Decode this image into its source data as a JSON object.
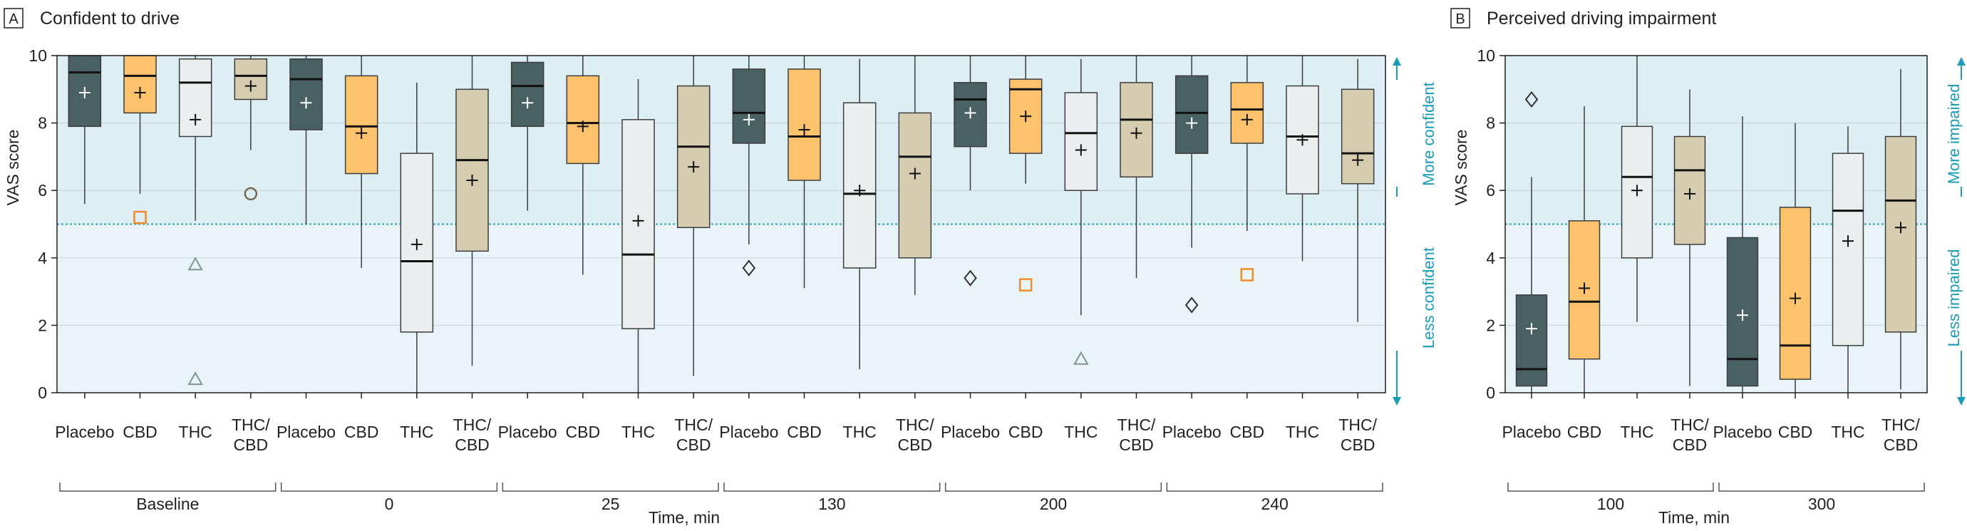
{
  "colors": {
    "placebo": "#4a6163",
    "cbd": "#fdc36c",
    "thc": "#ebeeee",
    "thccbd": "#d6ccb0",
    "region_upper": "#ddeff5",
    "region_lower": "#e8f4f8",
    "threshold": "#2ea4b8",
    "arrow": "#1a9bb8",
    "stroke": "#3d3d3d",
    "gridline": "#c9d3d6"
  },
  "chart_data": [
    {
      "panel_letter": "A",
      "title": "Confident to drive",
      "type": "box",
      "ylabel": "VAS score",
      "xlabel": "Time, min",
      "ylim": [
        0,
        10
      ],
      "yticks": [
        "0",
        "2",
        "4",
        "6",
        "8",
        "10"
      ],
      "threshold": 5,
      "upper_label": "More confident",
      "lower_label": "Less confident",
      "groups": [
        {
          "label": "Baseline",
          "boxes": [
            {
              "treatment": "placebo",
              "cat_label": [
                "Placebo"
              ],
              "min": 5.6,
              "q1": 7.9,
              "median": 9.5,
              "q3": 10.0,
              "max": 10.0,
              "mean": 8.9,
              "outliers": []
            },
            {
              "treatment": "cbd",
              "cat_label": [
                "CBD"
              ],
              "min": 5.9,
              "q1": 8.3,
              "median": 9.4,
              "q3": 10.0,
              "max": 10.0,
              "mean": 8.9,
              "outliers": [
                5.2
              ]
            },
            {
              "treatment": "thc",
              "cat_label": [
                "THC"
              ],
              "min": 5.1,
              "q1": 7.6,
              "median": 9.2,
              "q3": 9.9,
              "max": 10.0,
              "mean": 8.1,
              "outliers": [
                3.8,
                0.4
              ]
            },
            {
              "treatment": "thccbd",
              "cat_label": [
                "THC/",
                "CBD"
              ],
              "min": 7.2,
              "q1": 8.7,
              "median": 9.4,
              "q3": 9.9,
              "max": 10.0,
              "mean": 9.1,
              "outliers": [
                5.9
              ]
            }
          ]
        },
        {
          "label": "0",
          "boxes": [
            {
              "treatment": "placebo",
              "cat_label": [
                "Placebo"
              ],
              "min": 5.0,
              "q1": 7.8,
              "median": 9.3,
              "q3": 9.9,
              "max": 10.0,
              "mean": 8.6,
              "outliers": []
            },
            {
              "treatment": "cbd",
              "cat_label": [
                "CBD"
              ],
              "min": 3.7,
              "q1": 6.5,
              "median": 7.9,
              "q3": 9.4,
              "max": 10.0,
              "mean": 7.7,
              "outliers": []
            },
            {
              "treatment": "thc",
              "cat_label": [
                "THC"
              ],
              "min": 0.0,
              "q1": 1.8,
              "median": 3.9,
              "q3": 7.1,
              "max": 9.2,
              "mean": 4.4,
              "outliers": []
            },
            {
              "treatment": "thccbd",
              "cat_label": [
                "THC/",
                "CBD"
              ],
              "min": 0.8,
              "q1": 4.2,
              "median": 6.9,
              "q3": 9.0,
              "max": 10.0,
              "mean": 6.3,
              "outliers": []
            }
          ]
        },
        {
          "label": "25",
          "boxes": [
            {
              "treatment": "placebo",
              "cat_label": [
                "Placebo"
              ],
              "min": 5.4,
              "q1": 7.9,
              "median": 9.1,
              "q3": 9.8,
              "max": 10.0,
              "mean": 8.6,
              "outliers": []
            },
            {
              "treatment": "cbd",
              "cat_label": [
                "CBD"
              ],
              "min": 3.5,
              "q1": 6.8,
              "median": 8.0,
              "q3": 9.4,
              "max": 10.0,
              "mean": 7.9,
              "outliers": []
            },
            {
              "treatment": "thc",
              "cat_label": [
                "THC"
              ],
              "min": 0.0,
              "q1": 1.9,
              "median": 4.1,
              "q3": 8.1,
              "max": 9.3,
              "mean": 5.1,
              "outliers": []
            },
            {
              "treatment": "thccbd",
              "cat_label": [
                "THC/",
                "CBD"
              ],
              "min": 0.5,
              "q1": 4.9,
              "median": 7.3,
              "q3": 9.1,
              "max": 10.0,
              "mean": 6.7,
              "outliers": []
            }
          ]
        },
        {
          "label": "130",
          "boxes": [
            {
              "treatment": "placebo",
              "cat_label": [
                "Placebo"
              ],
              "min": 4.4,
              "q1": 7.4,
              "median": 8.3,
              "q3": 9.6,
              "max": 10.0,
              "mean": 8.1,
              "outliers": [
                3.7
              ]
            },
            {
              "treatment": "cbd",
              "cat_label": [
                "CBD"
              ],
              "min": 3.1,
              "q1": 6.3,
              "median": 7.6,
              "q3": 9.6,
              "max": 10.0,
              "mean": 7.8,
              "outliers": []
            },
            {
              "treatment": "thc",
              "cat_label": [
                "THC"
              ],
              "min": 0.7,
              "q1": 3.7,
              "median": 5.9,
              "q3": 8.6,
              "max": 9.9,
              "mean": 6.0,
              "outliers": []
            },
            {
              "treatment": "thccbd",
              "cat_label": [
                "THC/",
                "CBD"
              ],
              "min": 2.9,
              "q1": 4.0,
              "median": 7.0,
              "q3": 8.3,
              "max": 10.0,
              "mean": 6.5,
              "outliers": []
            }
          ]
        },
        {
          "label": "200",
          "boxes": [
            {
              "treatment": "placebo",
              "cat_label": [
                "Placebo"
              ],
              "min": 6.0,
              "q1": 7.3,
              "median": 8.7,
              "q3": 9.2,
              "max": 10.0,
              "mean": 8.3,
              "outliers": [
                3.4
              ]
            },
            {
              "treatment": "cbd",
              "cat_label": [
                "CBD"
              ],
              "min": 6.2,
              "q1": 7.1,
              "median": 9.0,
              "q3": 9.3,
              "max": 10.0,
              "mean": 8.2,
              "outliers": [
                3.2
              ]
            },
            {
              "treatment": "thc",
              "cat_label": [
                "THC"
              ],
              "min": 2.3,
              "q1": 6.0,
              "median": 7.7,
              "q3": 8.9,
              "max": 9.9,
              "mean": 7.2,
              "outliers": [
                1.0
              ]
            },
            {
              "treatment": "thccbd",
              "cat_label": [
                "THC/",
                "CBD"
              ],
              "min": 3.4,
              "q1": 6.4,
              "median": 8.1,
              "q3": 9.2,
              "max": 10.0,
              "mean": 7.7,
              "outliers": []
            }
          ]
        },
        {
          "label": "240",
          "boxes": [
            {
              "treatment": "placebo",
              "cat_label": [
                "Placebo"
              ],
              "min": 4.3,
              "q1": 7.1,
              "median": 8.3,
              "q3": 9.4,
              "max": 10.0,
              "mean": 8.0,
              "outliers": [
                2.6
              ]
            },
            {
              "treatment": "cbd",
              "cat_label": [
                "CBD"
              ],
              "min": 4.8,
              "q1": 7.4,
              "median": 8.4,
              "q3": 9.2,
              "max": 10.0,
              "mean": 8.1,
              "outliers": [
                3.5
              ]
            },
            {
              "treatment": "thc",
              "cat_label": [
                "THC"
              ],
              "min": 3.9,
              "q1": 5.9,
              "median": 7.6,
              "q3": 9.1,
              "max": 10.0,
              "mean": 7.5,
              "outliers": []
            },
            {
              "treatment": "thccbd",
              "cat_label": [
                "THC/",
                "CBD"
              ],
              "min": 2.1,
              "q1": 6.2,
              "median": 7.1,
              "q3": 9.0,
              "max": 9.9,
              "mean": 6.9,
              "outliers": []
            }
          ]
        }
      ]
    },
    {
      "panel_letter": "B",
      "title": "Perceived driving impairment",
      "type": "box",
      "ylabel": "VAS score",
      "xlabel": "Time, min",
      "ylim": [
        0,
        10
      ],
      "yticks": [
        "0",
        "2",
        "4",
        "6",
        "8",
        "10"
      ],
      "threshold": 5,
      "upper_label": "More impaired",
      "lower_label": "Less impaired",
      "groups": [
        {
          "label": "100",
          "boxes": [
            {
              "treatment": "placebo",
              "cat_label": [
                "Placebo"
              ],
              "min": 0.0,
              "q1": 0.2,
              "median": 0.7,
              "q3": 2.9,
              "max": 6.4,
              "mean": 1.9,
              "outliers": [
                8.7
              ]
            },
            {
              "treatment": "cbd",
              "cat_label": [
                "CBD"
              ],
              "min": 0.0,
              "q1": 1.0,
              "median": 2.7,
              "q3": 5.1,
              "max": 8.5,
              "mean": 3.1,
              "outliers": []
            },
            {
              "treatment": "thc",
              "cat_label": [
                "THC"
              ],
              "min": 2.1,
              "q1": 4.0,
              "median": 6.4,
              "q3": 7.9,
              "max": 10.0,
              "mean": 6.0,
              "outliers": []
            },
            {
              "treatment": "thccbd",
              "cat_label": [
                "THC/",
                "CBD"
              ],
              "min": 0.2,
              "q1": 4.4,
              "median": 6.6,
              "q3": 7.6,
              "max": 9.0,
              "mean": 5.9,
              "outliers": []
            }
          ]
        },
        {
          "label": "300",
          "boxes": [
            {
              "treatment": "placebo",
              "cat_label": [
                "Placebo"
              ],
              "min": 0.0,
              "q1": 0.2,
              "median": 1.0,
              "q3": 4.6,
              "max": 8.2,
              "mean": 2.3,
              "outliers": []
            },
            {
              "treatment": "cbd",
              "cat_label": [
                "CBD"
              ],
              "min": 0.0,
              "q1": 0.4,
              "median": 1.4,
              "q3": 5.5,
              "max": 8.0,
              "mean": 2.8,
              "outliers": []
            },
            {
              "treatment": "thc",
              "cat_label": [
                "THC"
              ],
              "min": 0.0,
              "q1": 1.4,
              "median": 5.4,
              "q3": 7.1,
              "max": 7.9,
              "mean": 4.5,
              "outliers": []
            },
            {
              "treatment": "thccbd",
              "cat_label": [
                "THC/",
                "CBD"
              ],
              "min": 0.1,
              "q1": 1.8,
              "median": 5.7,
              "q3": 7.6,
              "max": 9.6,
              "mean": 4.9,
              "outliers": []
            }
          ]
        }
      ]
    }
  ]
}
